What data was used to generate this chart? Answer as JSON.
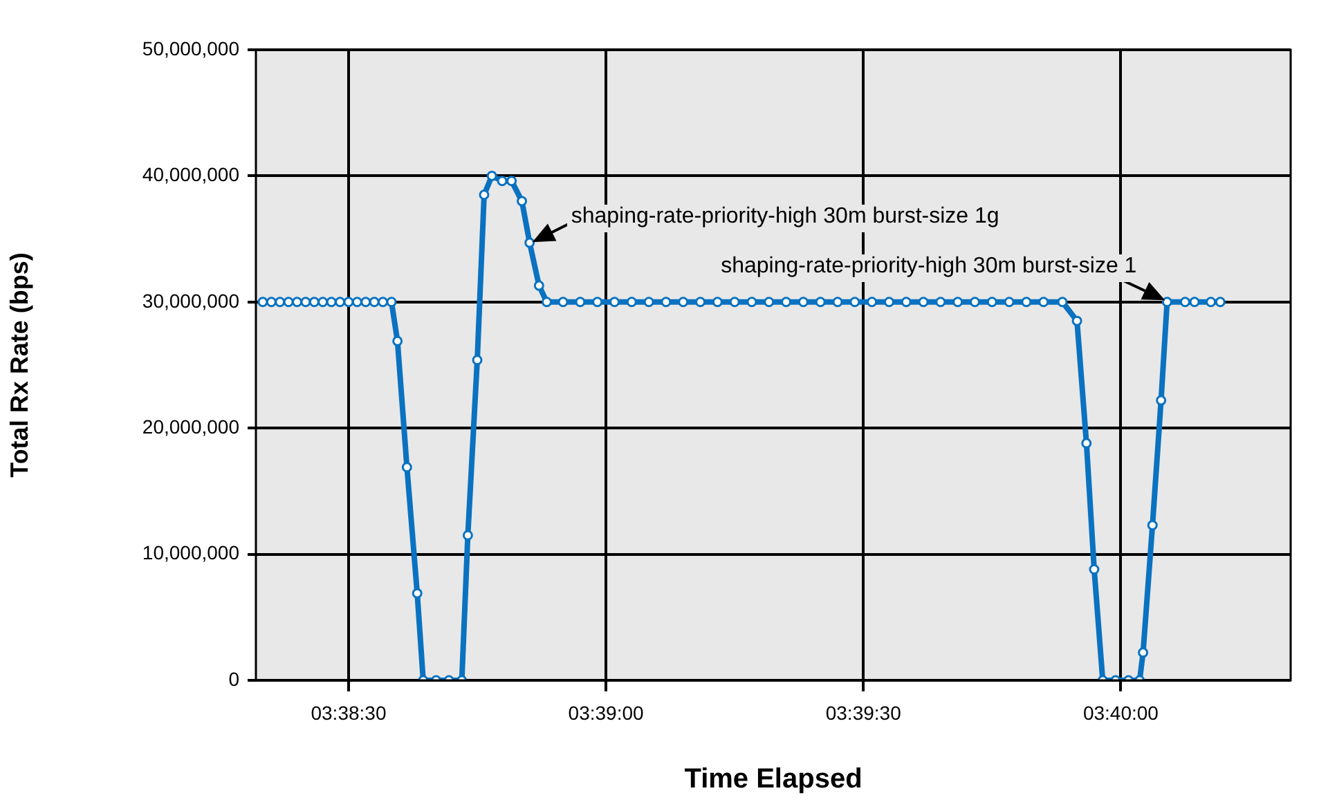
{
  "chart_data": {
    "type": "line",
    "xlabel": "Time Elapsed",
    "ylabel": "Total Rx Rate (bps)",
    "x": [
      3.638889,
      3.639167,
      3.639444,
      3.639722,
      3.64,
      3.640278,
      3.640556,
      3.640833,
      3.641111,
      3.641389,
      3.641667,
      3.641944,
      3.642222,
      3.6425,
      3.642778,
      3.643056,
      3.64325,
      3.643556,
      3.643889,
      3.644083,
      3.6445,
      3.644917,
      3.645333,
      3.645528,
      3.645833,
      3.646056,
      3.646306,
      3.646639,
      3.646944,
      3.647278,
      3.647528,
      3.647833,
      3.648083,
      3.648611,
      3.649167,
      3.649722,
      3.650278,
      3.650833,
      3.651389,
      3.651944,
      3.6525,
      3.653056,
      3.653611,
      3.654167,
      3.654722,
      3.655278,
      3.655833,
      3.656389,
      3.656944,
      3.6575,
      3.658056,
      3.658611,
      3.659167,
      3.659722,
      3.660278,
      3.660833,
      3.661389,
      3.661944,
      3.6625,
      3.663056,
      3.663611,
      3.664167,
      3.664778,
      3.66525,
      3.665556,
      3.665806,
      3.666083,
      3.6665,
      3.666917,
      3.667278,
      3.667389,
      3.667694,
      3.667972,
      3.668167,
      3.66875,
      3.669056,
      3.669583,
      3.669889
    ],
    "series": [
      {
        "color": "#0a72c0",
        "values": [
          30000000,
          30000000,
          30000000,
          30000000,
          30000000,
          30000000,
          30000000,
          30000000,
          30000000,
          30000000,
          30000000,
          30000000,
          30000000,
          30000000,
          30000000,
          30000000,
          26900000,
          16900000,
          6900000,
          0,
          0,
          0,
          0,
          11500000,
          25400000,
          38500000,
          40000000,
          39600000,
          39600000,
          38000000,
          34700000,
          31300000,
          30000000,
          30000000,
          30000000,
          30000000,
          30000000,
          30000000,
          30000000,
          30000000,
          30000000,
          30000000,
          30000000,
          30000000,
          30000000,
          30000000,
          30000000,
          30000000,
          30000000,
          30000000,
          30000000,
          30000000,
          30000000,
          30000000,
          30000000,
          30000000,
          30000000,
          30000000,
          30000000,
          30000000,
          30000000,
          30000000,
          30000000,
          28500000,
          18800000,
          8800000,
          0,
          0,
          0,
          0,
          2200000,
          12300000,
          22200000,
          30000000,
          30000000,
          30000000,
          30000000,
          30000000
        ]
      }
    ],
    "xlim": [
      3.638667,
      3.672167
    ],
    "xticks": [
      {
        "value": 3.641667,
        "label": "03:38:30"
      },
      {
        "value": 3.65,
        "label": "03:39:00"
      },
      {
        "value": 3.658333,
        "label": "03:39:30"
      },
      {
        "value": 3.666667,
        "label": "03:40:00"
      }
    ],
    "ylim": [
      0,
      50000000
    ],
    "yticks": [
      {
        "value": 0,
        "label": "0"
      },
      {
        "value": 10000000,
        "label": "10,000,000"
      },
      {
        "value": 20000000,
        "label": "20,000,000"
      },
      {
        "value": 30000000,
        "label": "30,000,000"
      },
      {
        "value": 40000000,
        "label": "40,000,000"
      },
      {
        "value": 50000000,
        "label": "50,000,000"
      }
    ],
    "grid": true,
    "legend": false,
    "marker": "circle",
    "line_style": "solid",
    "annotations": [
      {
        "text": "shaping-rate-priority-high 30m burst-size 1g",
        "x": 3.647528,
        "y": 34700000
      },
      {
        "text": "shaping-rate-priority-high 30m burst-size 1",
        "x": 3.668167,
        "y": 30000000
      }
    ]
  }
}
